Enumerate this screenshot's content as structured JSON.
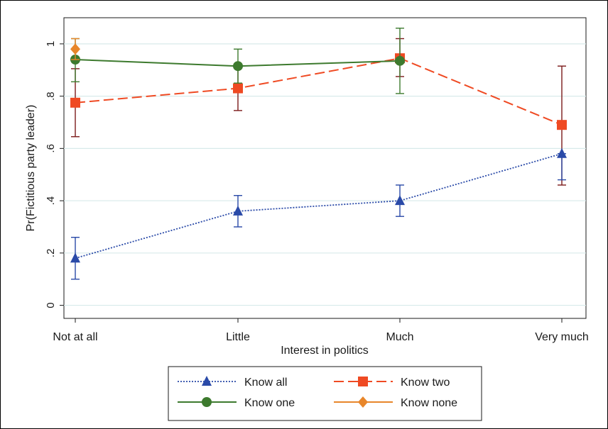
{
  "chart_data": {
    "type": "line",
    "xlabel": "Interest in politics",
    "ylabel": "Pr(Fictitious party leader)",
    "categories": [
      "Not at all",
      "Little",
      "Much",
      "Very much"
    ],
    "yticks": [
      {
        "value": 0,
        "label": "0"
      },
      {
        "value": 0.2,
        "label": ".2"
      },
      {
        "value": 0.4,
        "label": ".4"
      },
      {
        "value": 0.6,
        "label": ".6"
      },
      {
        "value": 0.8,
        "label": ".8"
      },
      {
        "value": 1,
        "label": "1"
      }
    ],
    "ylim": [
      -0.05,
      1.1
    ],
    "grid": true,
    "legend_position": "bottom",
    "series": [
      {
        "name": "Know all",
        "color": "#2a4aa8",
        "line_style": "dotted",
        "marker": "triangle",
        "values": [
          0.18,
          0.36,
          0.4,
          0.58
        ],
        "ci_low": [
          0.1,
          0.3,
          0.34,
          0.48
        ],
        "ci_high": [
          0.26,
          0.42,
          0.46,
          0.58
        ]
      },
      {
        "name": "Know two",
        "color": "#ef4a23",
        "ci_color": "#7b1a1a",
        "line_style": "dashed",
        "marker": "square",
        "values": [
          0.775,
          0.83,
          0.945,
          0.69
        ],
        "ci_low": [
          0.645,
          0.745,
          0.875,
          0.46
        ],
        "ci_high": [
          0.905,
          0.915,
          1.02,
          0.915
        ]
      },
      {
        "name": "Know one",
        "color": "#3d7a2e",
        "line_style": "solid",
        "marker": "circle",
        "values": [
          0.94,
          0.915,
          0.935,
          null
        ],
        "ci_low": [
          0.855,
          0.85,
          0.81,
          null
        ],
        "ci_high": [
          1.02,
          0.98,
          1.06,
          null
        ]
      },
      {
        "name": "Know none",
        "color": "#e8862a",
        "line_style": "solid",
        "marker": "diamond",
        "values": [
          0.98,
          null,
          null,
          null
        ],
        "ci_low": [
          0.94,
          null,
          null,
          null
        ],
        "ci_high": [
          1.02,
          null,
          null,
          null
        ]
      }
    ]
  }
}
